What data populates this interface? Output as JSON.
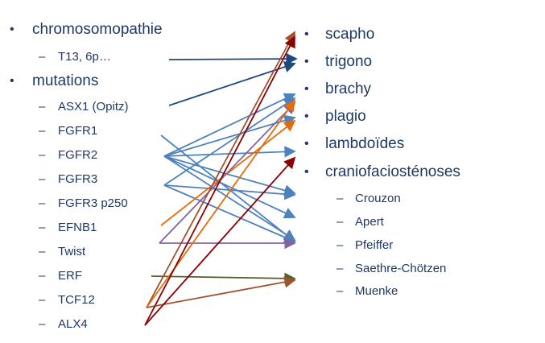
{
  "left_list": {
    "item_chromosomopathie": "chromosomopathie",
    "sub_t13": "T13, 6p…",
    "item_mutations": "mutations",
    "genes": [
      "ASX1 (Opitz)",
      "FGFR1",
      "FGFR2",
      "FGFR3",
      "FGFR3 p250",
      "EFNB1",
      "Twist",
      "ERF",
      "TCF12",
      "ALX4"
    ]
  },
  "right_list": {
    "items": [
      "scapho",
      "trigono",
      "brachy",
      "plagio",
      "lambdoïdes",
      "craniofaciosténoses"
    ],
    "syndromes": [
      "Crouzon",
      "Apert",
      "Pfeiffer",
      "Saethre-Chötzen",
      "Muenke"
    ]
  },
  "colors": {
    "text": "#1f3864",
    "navy_arrow": "#1f497d",
    "blue_arrow": "#4f81bd",
    "purple_arrow": "#8064a2",
    "orange_arrow": "#e46c0a",
    "brown_arrow": "#a0522d",
    "darkred_arrow": "#8b0000",
    "green_arrow": "#4f6228"
  }
}
